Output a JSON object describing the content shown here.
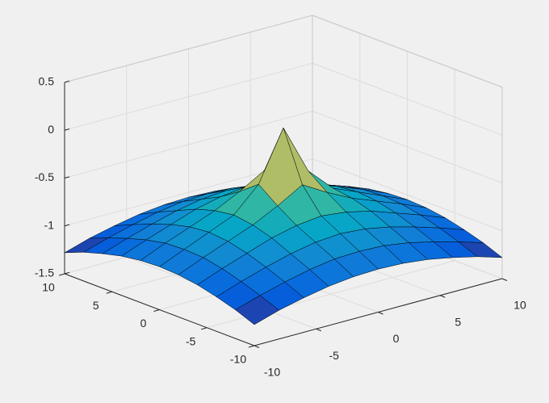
{
  "chart_data": {
    "type": "surface",
    "x": [
      -10,
      -8,
      -6,
      -4,
      -2,
      0,
      2,
      4,
      6,
      8,
      10
    ],
    "y": [
      -10,
      -8,
      -6,
      -4,
      -2,
      0,
      2,
      4,
      6,
      8,
      10
    ],
    "z": [
      [
        -1.28,
        -1.2,
        -1.14,
        -1.09,
        -1.06,
        -1.05,
        -1.06,
        -1.09,
        -1.14,
        -1.2,
        -1.28
      ],
      [
        -1.2,
        -1.12,
        -1.05,
        -0.99,
        -0.95,
        -0.94,
        -0.95,
        -0.99,
        -1.05,
        -1.12,
        -1.2
      ],
      [
        -1.14,
        -1.05,
        -0.97,
        -0.9,
        -0.85,
        -0.83,
        -0.85,
        -0.9,
        -0.97,
        -1.05,
        -1.14
      ],
      [
        -1.09,
        -0.99,
        -0.9,
        -0.81,
        -0.75,
        -0.72,
        -0.75,
        -0.81,
        -0.9,
        -0.99,
        -1.09
      ],
      [
        -1.06,
        -0.95,
        -0.85,
        -0.75,
        -0.62,
        -0.47,
        -0.62,
        -0.75,
        -0.85,
        -0.95,
        -1.06
      ],
      [
        -1.05,
        -0.94,
        -0.83,
        -0.72,
        -0.47,
        0.05,
        -0.47,
        -0.72,
        -0.83,
        -0.94,
        -1.05
      ],
      [
        -1.06,
        -0.95,
        -0.85,
        -0.75,
        -0.62,
        -0.47,
        -0.62,
        -0.75,
        -0.85,
        -0.95,
        -1.06
      ],
      [
        -1.09,
        -0.99,
        -0.9,
        -0.81,
        -0.75,
        -0.72,
        -0.75,
        -0.81,
        -0.9,
        -0.99,
        -1.09
      ],
      [
        -1.14,
        -1.05,
        -0.97,
        -0.9,
        -0.85,
        -0.83,
        -0.85,
        -0.9,
        -0.97,
        -1.05,
        -1.14
      ],
      [
        -1.2,
        -1.12,
        -1.05,
        -0.99,
        -0.95,
        -0.94,
        -0.95,
        -0.99,
        -1.05,
        -1.12,
        -1.2
      ],
      [
        -1.28,
        -1.2,
        -1.14,
        -1.09,
        -1.06,
        -1.05,
        -1.06,
        -1.09,
        -1.14,
        -1.2,
        -1.28
      ]
    ],
    "xlim": [
      -10,
      10
    ],
    "ylim": [
      -10,
      10
    ],
    "zlim": [
      -1.5,
      0.5
    ],
    "xticks": [
      -10,
      -5,
      0,
      5,
      10
    ],
    "yticks": [
      -10,
      -5,
      0,
      5,
      10
    ],
    "zticks": [
      -1.5,
      -1,
      -0.5,
      0,
      0.5
    ],
    "grid": true,
    "colormap": [
      "#352a87",
      "#0363e1",
      "#1485d4",
      "#06a7c6",
      "#38b99e",
      "#92bf73",
      "#d9ba56",
      "#fcce2e",
      "#f9fb0e"
    ],
    "edge_color": "#000000"
  }
}
